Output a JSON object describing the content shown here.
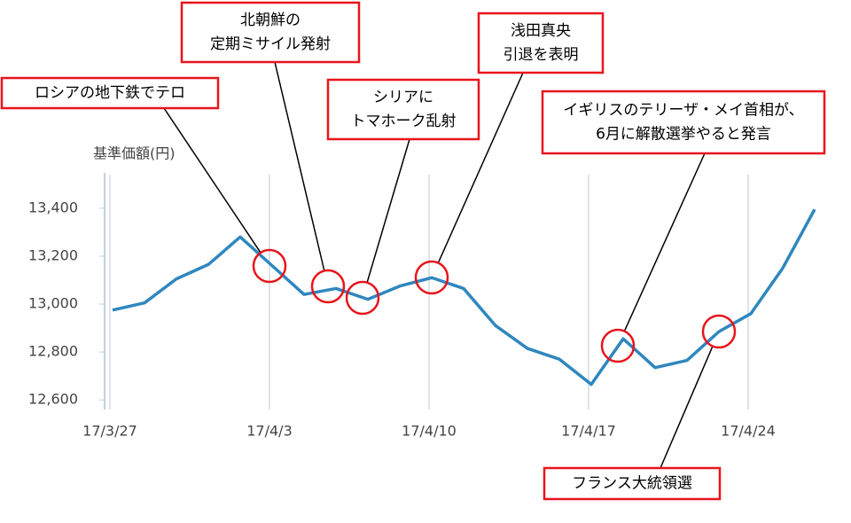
{
  "chart_data": {
    "type": "line",
    "y_label": "基準価額(円)",
    "categories": [
      "17/3/27",
      null,
      null,
      null,
      null,
      "17/4/3",
      null,
      null,
      null,
      null,
      "17/4/10",
      null,
      null,
      null,
      null,
      "17/4/17",
      null,
      null,
      null,
      null,
      "17/4/24",
      null,
      null
    ],
    "series": [
      {
        "color": "#2f87bf",
        "values": [
          12975,
          13005,
          13105,
          13165,
          13280,
          13160,
          13040,
          13065,
          13020,
          13075,
          13110,
          13065,
          12910,
          12815,
          12770,
          12665,
          12855,
          12735,
          12765,
          12885,
          12960,
          13150,
          13395
        ]
      }
    ],
    "ylim": [
      12560,
      13540
    ],
    "yticks": [
      {
        "value": 12600,
        "label": "12,600"
      },
      {
        "value": 12800,
        "label": "12,800"
      },
      {
        "value": 13000,
        "label": "13,000"
      },
      {
        "value": 13200,
        "label": "13,200"
      },
      {
        "value": 13400,
        "label": "13,400"
      }
    ],
    "grid": true,
    "annotations": [
      {
        "lines": [
          "ロシアの地下鉄でテロ"
        ]
      },
      {
        "lines": [
          "北朝鮮の",
          "定期ミサイル発射"
        ]
      },
      {
        "lines": [
          "シリアに",
          "トマホーク乱射"
        ]
      },
      {
        "lines": [
          "浅田真央",
          "引退を表明"
        ]
      },
      {
        "lines": [
          "イギリスのテリーザ・メイ首相が、",
          "6月に解散選挙やると発言"
        ]
      },
      {
        "lines": [
          "フランス大統領選"
        ]
      }
    ]
  }
}
